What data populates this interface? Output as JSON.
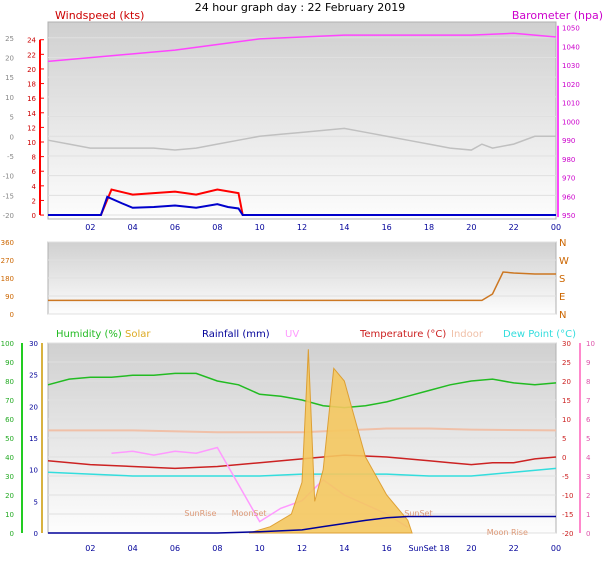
{
  "title": "24 hour graph day : 22 February 2019",
  "colors": {
    "wind": "#ff0000",
    "gust": "#ff0000",
    "wind_avg": "#0000cc",
    "baro": "#ff44ff",
    "temp_top": "#c0c0c0",
    "direction": "#cc7722",
    "humidity": "#22bb22",
    "solar": "#ddaa22",
    "rainfall": "#000099",
    "uv": "#ff99ff",
    "temperature": "#cc2222",
    "indoor": "#f0c0a8",
    "dewpoint": "#33dddd"
  },
  "chart_data": [
    {
      "type": "line",
      "title": "",
      "left_axis_label": "Windspeed (kts)",
      "right_axis_label": "Barometer (hpa)",
      "left_ticks": [
        25,
        20,
        15,
        10,
        5,
        0,
        -5,
        -10,
        -15,
        -20
      ],
      "left_red_ticks": [
        24,
        22,
        20,
        18,
        16,
        14,
        12,
        10,
        8,
        6,
        4,
        2,
        0
      ],
      "left_range": [
        -21,
        29
      ],
      "right_ticks": [
        1050,
        1040,
        1030,
        1020,
        1010,
        1000,
        990,
        980,
        970,
        960,
        950
      ],
      "right_range": [
        948,
        1053
      ],
      "x_ticks": [
        "02",
        "04",
        "06",
        "08",
        "10",
        "12",
        "14",
        "16",
        "18",
        "20",
        "22",
        "00"
      ],
      "x_tick_hours": [
        2,
        4,
        6,
        8,
        10,
        12,
        14,
        16,
        18,
        20,
        22,
        24
      ],
      "series": [
        {
          "key": "baro",
          "axis": "right",
          "x": [
            0,
            2,
            4,
            6,
            8,
            10,
            12,
            14,
            16,
            18,
            20,
            22,
            23,
            24
          ],
          "y": [
            1032,
            1034,
            1036,
            1038,
            1041,
            1044,
            1045,
            1046,
            1046,
            1046,
            1046,
            1047,
            1046,
            1045
          ]
        },
        {
          "key": "temp_top",
          "axis": "left",
          "x": [
            0,
            1,
            2,
            3,
            4,
            5,
            6,
            7,
            8,
            9,
            10,
            11,
            12,
            13,
            14,
            15,
            16,
            17,
            18,
            19,
            20,
            20.5,
            21,
            22,
            23,
            24
          ],
          "y": [
            -1,
            -2,
            -3,
            -3,
            -3,
            -3,
            -3.5,
            -3,
            -2,
            -1,
            0,
            0.5,
            1,
            1.5,
            2,
            1,
            0,
            -1,
            -2,
            -3,
            -3.5,
            -2,
            -3,
            -2,
            0,
            0
          ]
        },
        {
          "key": "gust",
          "axis": "left_red",
          "x": [
            0,
            2.5,
            3,
            4,
            5,
            6,
            7,
            8,
            9,
            9.2,
            10,
            24
          ],
          "y": [
            0,
            0,
            3.5,
            2.8,
            3,
            3.2,
            2.8,
            3.5,
            3,
            0,
            0,
            0
          ]
        },
        {
          "key": "wind_avg",
          "axis": "left_red",
          "x": [
            0,
            2.5,
            2.8,
            3.5,
            4,
            5,
            6,
            7,
            8,
            8.5,
            9,
            9.2,
            10,
            24
          ],
          "y": [
            0,
            0,
            2.5,
            1.6,
            1,
            1.1,
            1.3,
            1,
            1.5,
            1.1,
            0.9,
            0,
            0,
            0
          ]
        }
      ]
    },
    {
      "type": "line",
      "title": "",
      "left_ticks": [
        360,
        270,
        180,
        90,
        0
      ],
      "left_range": [
        0,
        360
      ],
      "right_labels": [
        "N",
        "W",
        "S",
        "E",
        "N"
      ],
      "x_ticks": [],
      "series": [
        {
          "key": "direction",
          "name": "Wind direction",
          "x": [
            0,
            1,
            20.5,
            21,
            21.5,
            22,
            23,
            24
          ],
          "y": [
            68,
            68,
            68,
            100,
            210,
            205,
            200,
            200
          ]
        }
      ]
    },
    {
      "type": "line",
      "title": "",
      "legend": [
        "Humidity (%)",
        "Solar",
        "Rainfall (mm)",
        "UV",
        "Temperature (°C)",
        "Indoor",
        "Dew Point (°C)"
      ],
      "left_ticks": [
        100,
        90,
        80,
        70,
        60,
        50,
        40,
        30,
        20,
        10,
        0
      ],
      "left_range": [
        0,
        100
      ],
      "left2_ticks": [
        30,
        25,
        20,
        15,
        10,
        5,
        0
      ],
      "right_ticks": [
        30,
        25,
        20,
        15,
        10,
        5,
        0,
        -5,
        -10,
        -15,
        -20
      ],
      "right_range": [
        -20,
        30
      ],
      "right2_ticks": [
        10,
        9,
        8,
        7,
        6,
        5,
        4,
        3,
        2,
        1,
        0
      ],
      "x_ticks": [
        "02",
        "04",
        "06",
        "08",
        "10",
        "12",
        "14",
        "16",
        "SunSet 18",
        "20",
        "22",
        "00"
      ],
      "x_tick_hours": [
        2,
        4,
        6,
        8,
        10,
        12,
        14,
        16,
        18,
        20,
        22,
        24
      ],
      "annotations": [
        "SunRise",
        "SunSet",
        "Moon Rise",
        "MoonSet"
      ],
      "annotation_hours": [
        7.2,
        17.5,
        21.7,
        9.5
      ],
      "series": [
        {
          "key": "humidity",
          "axis": "left",
          "x": [
            0,
            1,
            2,
            3,
            4,
            5,
            6,
            7,
            8,
            9,
            10,
            11,
            12,
            13,
            14,
            15,
            16,
            17,
            18,
            19,
            20,
            21,
            22,
            23,
            24
          ],
          "y": [
            78,
            81,
            82,
            82,
            83,
            83,
            84,
            84,
            80,
            78,
            73,
            72,
            70,
            67,
            66,
            67,
            69,
            72,
            75,
            78,
            80,
            81,
            79,
            78,
            79
          ]
        },
        {
          "key": "indoor",
          "axis": "right",
          "x": [
            0,
            4,
            8,
            12,
            14,
            16,
            18,
            20,
            24
          ],
          "y": [
            7,
            7,
            6.5,
            6.5,
            7,
            7.5,
            7.5,
            7.2,
            7
          ]
        },
        {
          "key": "temperature",
          "axis": "right",
          "x": [
            0,
            2,
            4,
            6,
            8,
            10,
            12,
            14,
            16,
            18,
            19,
            20,
            21,
            22,
            23,
            24
          ],
          "y": [
            -1,
            -2,
            -2.5,
            -3,
            -2.5,
            -1.5,
            -0.5,
            0.5,
            0,
            -1,
            -1.5,
            -2,
            -1.5,
            -1.5,
            -0.5,
            0
          ]
        },
        {
          "key": "dewpoint",
          "axis": "right",
          "x": [
            0,
            2,
            4,
            6,
            8,
            10,
            12,
            14,
            16,
            18,
            20,
            22,
            24
          ],
          "y": [
            -4,
            -4.5,
            -5,
            -5,
            -5,
            -5,
            -4.5,
            -4.5,
            -4.5,
            -5,
            -5,
            -4,
            -3
          ]
        },
        {
          "key": "uv",
          "axis": "right2",
          "x": [
            3,
            4,
            5,
            6,
            7,
            8,
            10,
            11,
            12,
            13,
            14,
            15,
            16,
            17
          ],
          "y": [
            4.2,
            4.3,
            4.1,
            4.3,
            4.2,
            4.5,
            0.6,
            1.3,
            1.7,
            2.8,
            2.0,
            1.5,
            1.0,
            0.3
          ]
        },
        {
          "key": "solar",
          "axis": "left2",
          "x": [
            9.5,
            10.5,
            11.5,
            12,
            12.3,
            12.6,
            13,
            13.5,
            14,
            15,
            16,
            17,
            17.2
          ],
          "y": [
            0,
            1,
            3,
            8,
            29,
            5,
            10,
            26,
            24,
            12,
            6,
            2,
            0
          ]
        },
        {
          "key": "rainfall",
          "axis": "left2",
          "x": [
            0,
            6,
            8,
            10,
            12,
            13,
            14,
            15,
            16,
            17,
            24
          ],
          "y": [
            0,
            0,
            0,
            0.2,
            0.5,
            1,
            1.5,
            2,
            2.4,
            2.6,
            2.6
          ]
        }
      ]
    }
  ]
}
